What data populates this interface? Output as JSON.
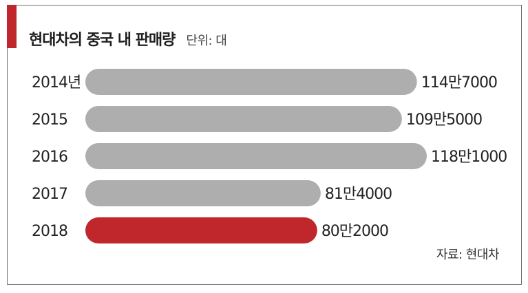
{
  "title": "현대차의 중국 내 판매량",
  "unit_note": "단위: 대",
  "source": "자료: 현대차",
  "colors": {
    "bar": "#aeaeaf",
    "highlight": "#c0272d",
    "accent": "#c0272d"
  },
  "chart_data": {
    "type": "bar",
    "orientation": "horizontal",
    "categories": [
      "2014년",
      "2015",
      "2016",
      "2017",
      "2018"
    ],
    "values": [
      1147000,
      1095000,
      1181000,
      814000,
      802000
    ],
    "value_labels": [
      "114만7000",
      "109만5000",
      "118만1000",
      "81만4000",
      "80만2000"
    ],
    "highlight_index": 4,
    "xlim": [
      0,
      1181000
    ]
  }
}
